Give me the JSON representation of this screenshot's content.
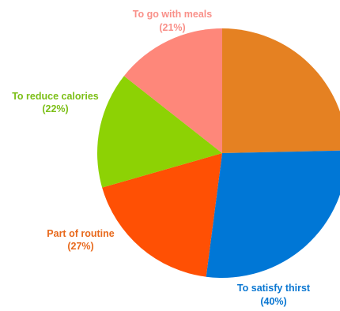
{
  "chart_data": {
    "type": "pie",
    "title": "",
    "slices": [
      {
        "label": "To satisfy thirst",
        "value": 40,
        "percent_label": "(40%)",
        "color": "#0077d6"
      },
      {
        "label": "Part of routine",
        "value": 27,
        "percent_label": "(27%)",
        "color": "#ff5004"
      },
      {
        "label": "To reduce calories",
        "value": 22,
        "percent_label": "(22%)",
        "color": "#8dd204"
      },
      {
        "label": "To go with meals",
        "value": 21,
        "percent_label": "(21%)",
        "color": "#fe877a"
      },
      {
        "label": "",
        "value": 36,
        "percent_label": "",
        "color": "#e58122"
      }
    ],
    "label_colors": [
      "#0a77d2",
      "#e8691c",
      "#7cbf17",
      "#f99089"
    ],
    "legend": "none"
  }
}
